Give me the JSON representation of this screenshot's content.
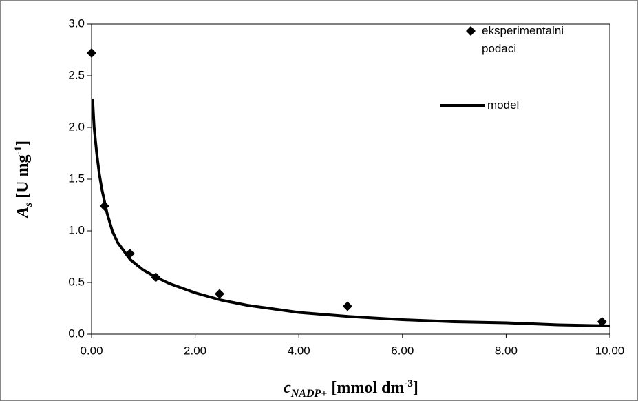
{
  "chart_data": {
    "type": "scatter",
    "y_title_parts": [
      "A",
      "s",
      " [U mg",
      "-1",
      "]"
    ],
    "x_title_parts": [
      "c",
      "NADP+",
      " [mmol dm",
      "-3",
      "]"
    ],
    "series": [
      {
        "name": "eksperimentalni podaci",
        "type": "scatter",
        "color": "#000000",
        "x": [
          0,
          0.25,
          0.74,
          1.24,
          2.47,
          4.94,
          9.85
        ],
        "values": [
          2.72,
          1.24,
          0.78,
          0.55,
          0.39,
          0.27,
          0.12
        ]
      },
      {
        "name": "model",
        "type": "line",
        "color": "#000000",
        "x": [
          0.02,
          0.05,
          0.1,
          0.15,
          0.2,
          0.3,
          0.4,
          0.5,
          0.75,
          1.0,
          1.25,
          1.5,
          2,
          2.5,
          3,
          4,
          5,
          6,
          7,
          8,
          9,
          10
        ],
        "values": [
          2.28,
          2.0,
          1.75,
          1.55,
          1.4,
          1.17,
          1.0,
          0.89,
          0.72,
          0.62,
          0.55,
          0.49,
          0.4,
          0.33,
          0.28,
          0.21,
          0.17,
          0.14,
          0.12,
          0.11,
          0.09,
          0.08
        ]
      }
    ],
    "xlim": [
      0,
      10
    ],
    "xticks": [
      {
        "value": 0,
        "label": "0.00"
      },
      {
        "value": 2,
        "label": "2.00"
      },
      {
        "value": 4,
        "label": "4.00"
      },
      {
        "value": 6,
        "label": "6.00"
      },
      {
        "value": 8,
        "label": "8.00"
      },
      {
        "value": 10,
        "label": "10.00"
      }
    ],
    "ylim": [
      0,
      3
    ],
    "yticks": [
      {
        "value": 0,
        "label": "0.0"
      },
      {
        "value": 0.5,
        "label": "0.5"
      },
      {
        "value": 1,
        "label": "1.0"
      },
      {
        "value": 1.5,
        "label": "1.5"
      },
      {
        "value": 2,
        "label": "2.0"
      },
      {
        "value": 2.5,
        "label": "2.5"
      },
      {
        "value": 3,
        "label": "3.0"
      }
    ],
    "grid": false
  }
}
